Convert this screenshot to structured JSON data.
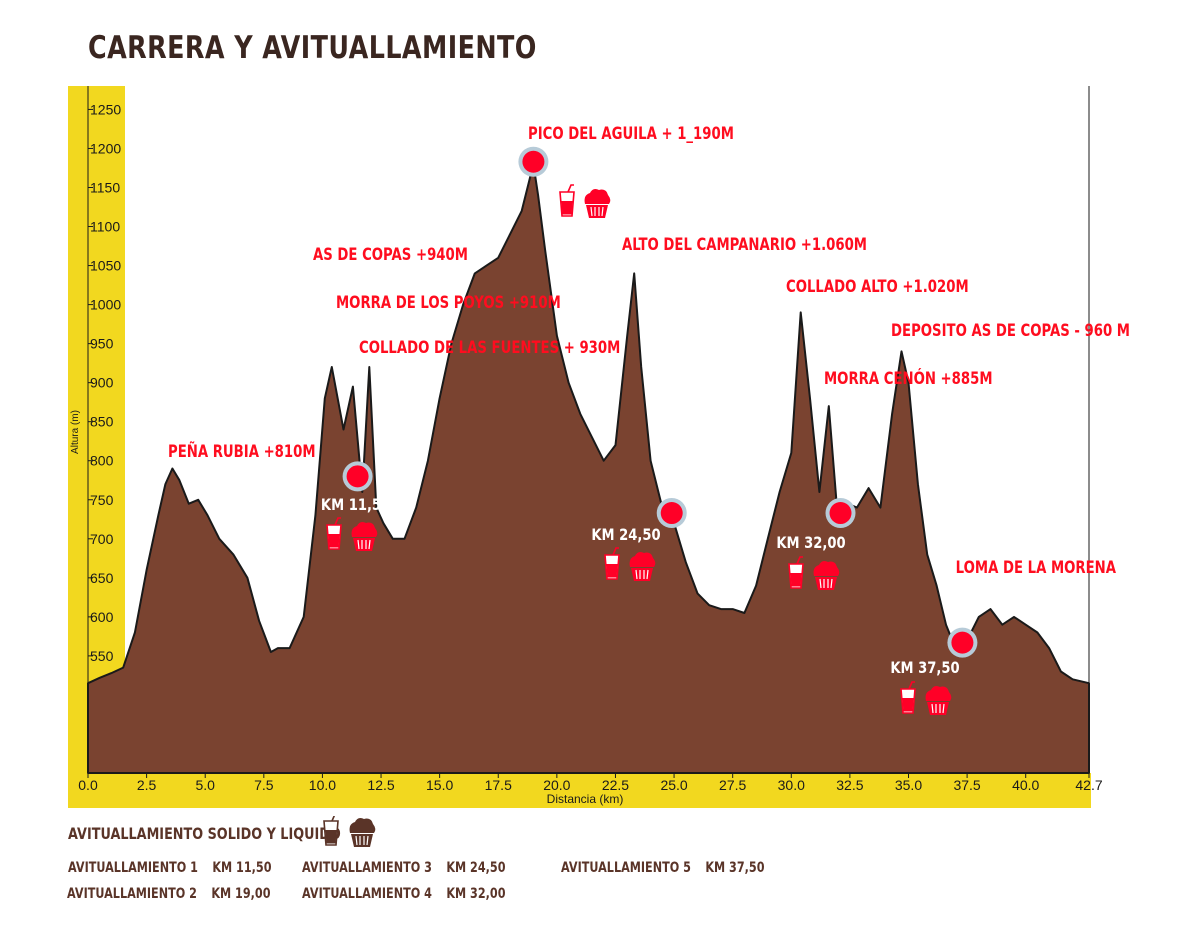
{
  "title": "CARRERA Y AVITUALLAMIENTO",
  "colors": {
    "profile_fill": "#7a4330",
    "profile_stroke": "#1a1a1a",
    "axis_band": "#f2d81f",
    "marker": "#ff0027",
    "marker_ring": "#b7cbd8",
    "label": "#ff0d1f",
    "text_dark": "#5a3428"
  },
  "chart_data": {
    "type": "area",
    "xlabel": "Distancia  (km)",
    "ylabel": "Altura (m)",
    "xlim": [
      0,
      42.7
    ],
    "ylim": [
      400,
      1280
    ],
    "x_ticks": [
      "0.0",
      "2.5",
      "5.0",
      "7.5",
      "10.0",
      "12.5",
      "15.0",
      "17.5",
      "20.0",
      "22.5",
      "25.0",
      "27.5",
      "30.0",
      "32.5",
      "35.0",
      "37.5",
      "40.0",
      "42.7"
    ],
    "y_ticks": [
      "450",
      "500",
      "550",
      "600",
      "650",
      "700",
      "750",
      "800",
      "850",
      "900",
      "950",
      "1000",
      "1050",
      "1100",
      "1150",
      "1200",
      "1250"
    ],
    "grid": false,
    "x": [
      0,
      0.5,
      1,
      1.5,
      2,
      2.5,
      3,
      3.3,
      3.6,
      3.9,
      4.3,
      4.7,
      5.1,
      5.6,
      6.2,
      6.8,
      7.3,
      7.8,
      8.1,
      8.6,
      9.2,
      9.7,
      10.1,
      10.4,
      10.9,
      11.3,
      11.7,
      12.0,
      12.3,
      12.6,
      13.0,
      13.5,
      14.0,
      14.5,
      15.0,
      15.5,
      16.0,
      16.5,
      17.0,
      17.5,
      18.0,
      18.5,
      19.0,
      19.2,
      19.5,
      20.0,
      20.5,
      21.0,
      21.5,
      22.0,
      22.5,
      23.0,
      23.3,
      23.6,
      24.0,
      24.5,
      25.0,
      25.5,
      26.0,
      26.5,
      27.0,
      27.5,
      28.0,
      28.5,
      29.0,
      29.5,
      30.0,
      30.4,
      30.8,
      31.2,
      31.6,
      32.0,
      32.4,
      32.8,
      33.3,
      33.8,
      34.3,
      34.7,
      35.0,
      35.4,
      35.8,
      36.2,
      36.6,
      37.0,
      37.5,
      38.0,
      38.5,
      39.0,
      39.5,
      40.0,
      40.5,
      41.0,
      41.5,
      42.0,
      42.7
    ],
    "y": [
      515,
      522,
      528,
      535,
      580,
      660,
      730,
      770,
      790,
      775,
      745,
      750,
      730,
      700,
      680,
      650,
      595,
      555,
      560,
      560,
      600,
      730,
      880,
      920,
      840,
      895,
      760,
      920,
      740,
      720,
      700,
      700,
      740,
      800,
      880,
      950,
      1000,
      1040,
      1050,
      1060,
      1090,
      1120,
      1180,
      1140,
      1070,
      960,
      900,
      860,
      830,
      800,
      820,
      960,
      1040,
      920,
      800,
      740,
      720,
      670,
      630,
      615,
      610,
      610,
      605,
      640,
      700,
      760,
      810,
      990,
      880,
      760,
      870,
      720,
      745,
      740,
      765,
      740,
      860,
      940,
      900,
      770,
      680,
      640,
      590,
      560,
      570,
      600,
      610,
      590,
      600,
      590,
      580,
      560,
      530,
      520,
      515
    ],
    "peaks": [
      {
        "label": "PEÑA RUBIA +810M",
        "x": 3.8
      },
      {
        "label": "AS DE COPAS +940M",
        "x": 10.3
      },
      {
        "label": "MORRA DE LOS POYOS +910M",
        "x": 11.4
      },
      {
        "label": "COLLADO DE LAS FUENTES + 930M",
        "x": 12.4
      },
      {
        "label": "PICO DEL AGUILA + 1_190M",
        "x": 19.0
      },
      {
        "label": "ALTO DEL CAMPANARIO +1.060M",
        "x": 23.3
      },
      {
        "label": "COLLADO ALTO +1.020M",
        "x": 30.4
      },
      {
        "label": "MORRA CENÓN +885M",
        "x": 31.8
      },
      {
        "label": "DEPOSITO AS DE COPAS - 960 M",
        "x": 35.0
      },
      {
        "label": "LOMA DE LA MORENA",
        "x": 38.5
      }
    ],
    "aid_stations": [
      {
        "label": "KM 11,5",
        "x": 11.5,
        "y": 780
      },
      {
        "label": "",
        "x": 19.0,
        "y": 1183
      },
      {
        "label": "KM 24,50",
        "x": 24.9,
        "y": 733
      },
      {
        "label": "KM 32,00",
        "x": 32.1,
        "y": 733
      },
      {
        "label": "KM 37,50",
        "x": 37.3,
        "y": 567
      }
    ]
  },
  "legend": {
    "title": "AVITUALLAMIENTO SOLIDO Y LIQUIDO",
    "icons": [
      "drink-icon",
      "muffin-icon"
    ]
  },
  "stops": [
    {
      "name": "AVITUALLAMIENTO 1",
      "km": "KM 11,50"
    },
    {
      "name": "AVITUALLAMIENTO 2",
      "km": "KM 19,00"
    },
    {
      "name": "AVITUALLAMIENTO 3",
      "km": "KM 24,50"
    },
    {
      "name": "AVITUALLAMIENTO 4",
      "km": "KM 32,00"
    },
    {
      "name": "AVITUALLAMIENTO 5",
      "km": "KM 37,50"
    }
  ]
}
